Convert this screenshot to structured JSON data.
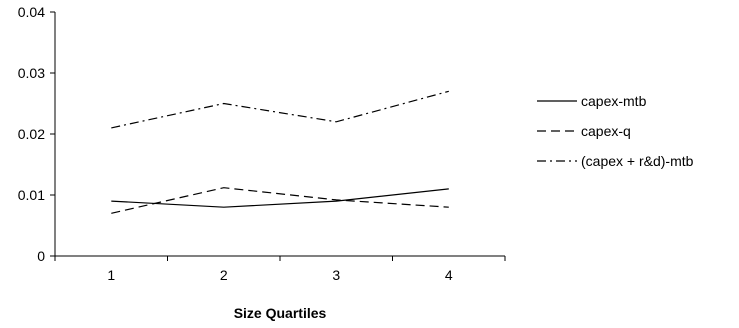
{
  "chart_data": {
    "type": "line",
    "title": "",
    "xlabel": "Size Quartiles",
    "ylabel": "",
    "x": [
      1,
      2,
      3,
      4
    ],
    "ylim": [
      0,
      0.04
    ],
    "yticks": [
      0,
      0.01,
      0.02,
      0.03,
      0.04
    ],
    "ytick_labels": [
      "0",
      "0.01",
      "0.02",
      "0.03",
      "0.04"
    ],
    "xtick_labels": [
      "1",
      "2",
      "3",
      "4"
    ],
    "grid": false,
    "legend_position": "right",
    "series": [
      {
        "name": "capex-mtb",
        "values": [
          0.009,
          0.008,
          0.009,
          0.011
        ],
        "style": "solid",
        "color": "#000000"
      },
      {
        "name": "capex-q",
        "values": [
          0.007,
          0.0112,
          0.0092,
          0.008
        ],
        "style": "dashed",
        "color": "#000000"
      },
      {
        "name": "(capex + r&d)-mtb",
        "values": [
          0.021,
          0.025,
          0.022,
          0.027
        ],
        "style": "dash-dot",
        "color": "#000000"
      }
    ]
  }
}
